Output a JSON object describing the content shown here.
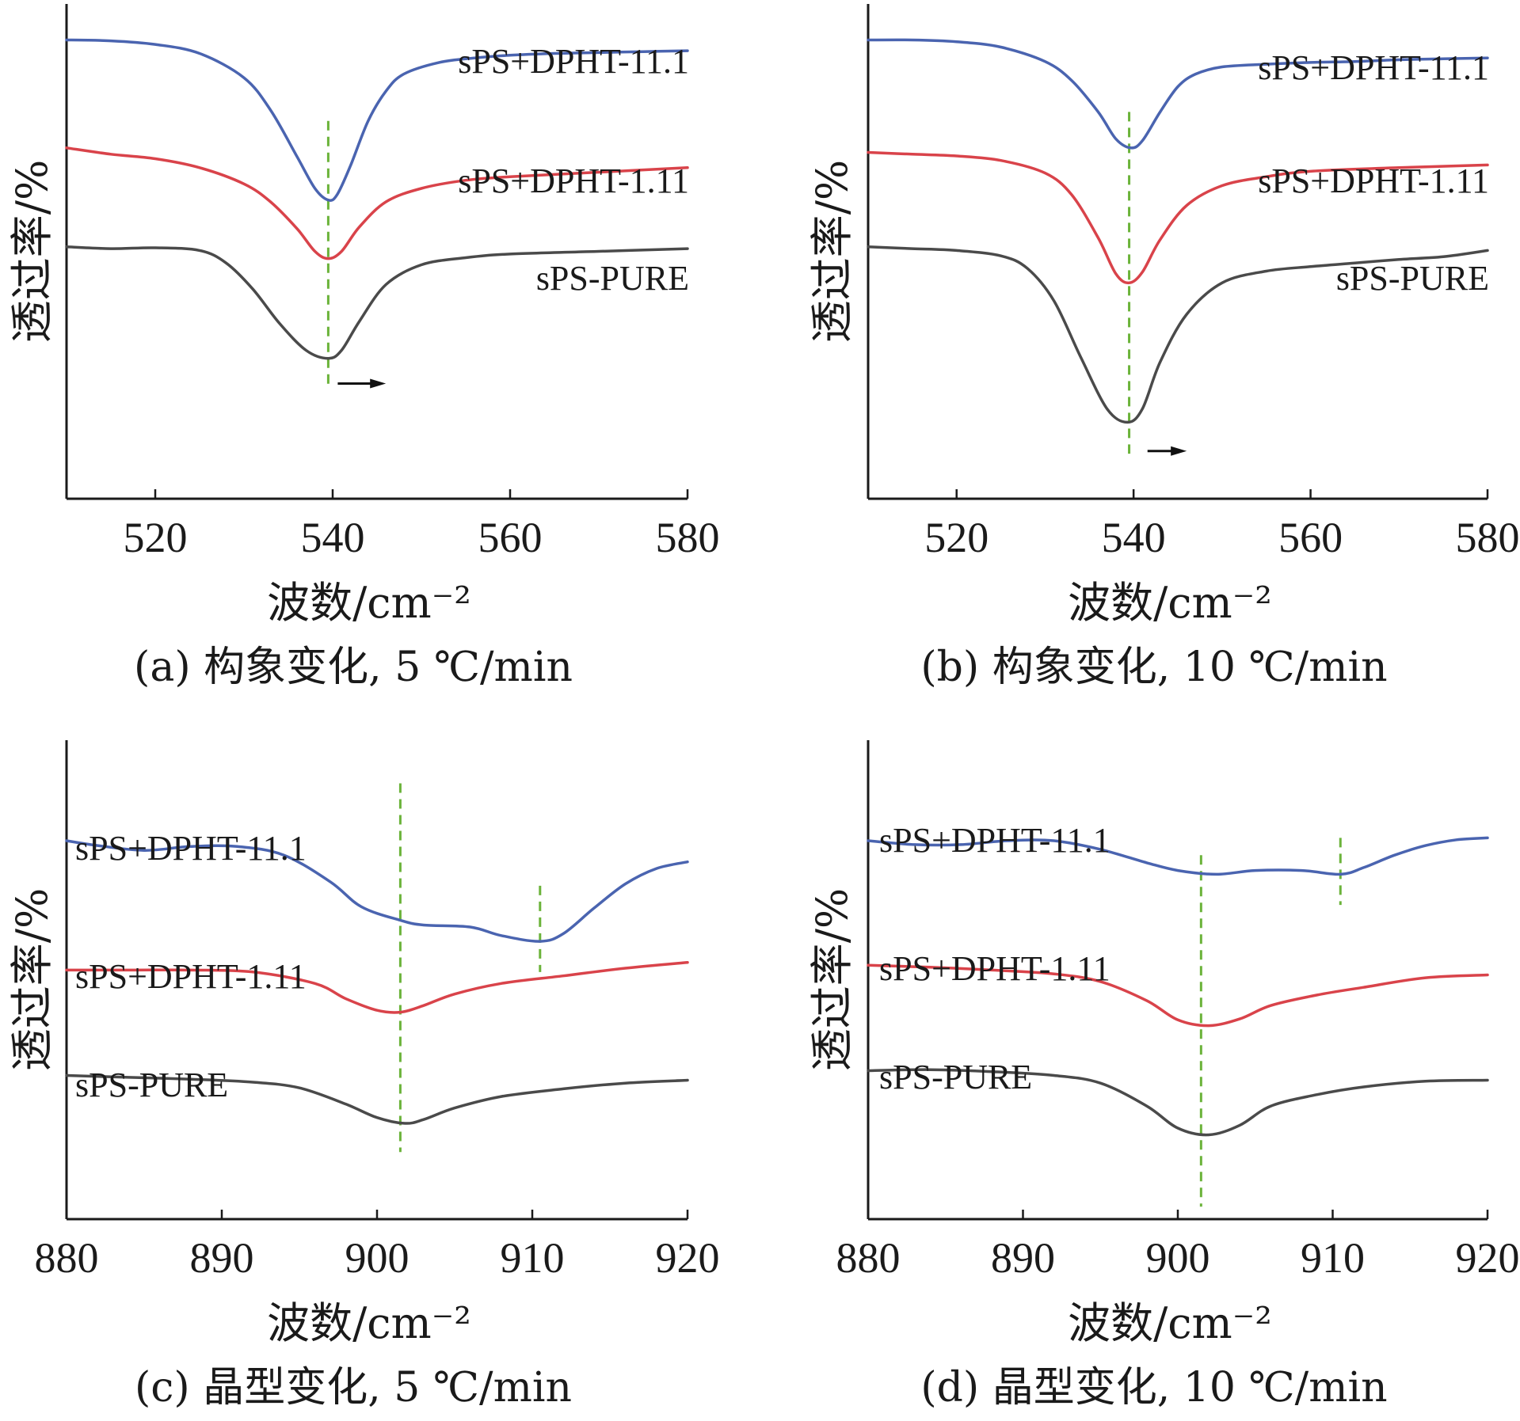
{
  "colors": {
    "series1": "#4a64b0",
    "series2": "#d9434a",
    "series3": "#4a4a4a",
    "ref": "#6bb33a"
  },
  "chart_data": [
    {
      "panel": "a",
      "type": "line",
      "caption": "(a) 构象变化, 5 ℃/min",
      "xlabel": "波数/cm⁻²",
      "ylabel": "透过率/%",
      "xlim": [
        510,
        580
      ],
      "xticks": [
        520,
        540,
        560,
        580
      ],
      "y_ticks_shown": false,
      "grid": false,
      "reference_lines": [
        539.5
      ],
      "arrow": {
        "from": 539.5,
        "to": 546
      },
      "series": [
        {
          "name": "sPS+DPHT-11.1",
          "color_key": "series1",
          "x": [
            510,
            515,
            520,
            525,
            530,
            533,
            536,
            538,
            539.5,
            540.5,
            542,
            544,
            546,
            548,
            552,
            556,
            560,
            565,
            570,
            575,
            580
          ],
          "y": [
            96.0,
            95.9,
            95.5,
            94.5,
            91.8,
            88.2,
            83.0,
            79.5,
            78.2,
            78.8,
            82.0,
            87.0,
            90.3,
            92.2,
            93.5,
            94.0,
            94.3,
            94.5,
            94.6,
            94.7,
            94.8
          ]
        },
        {
          "name": "sPS+DPHT-1.11",
          "color_key": "series2",
          "x": [
            510,
            515,
            520,
            525,
            530,
            533,
            536,
            538,
            539.5,
            541,
            543,
            546,
            550,
            555,
            560,
            570,
            580
          ],
          "y": [
            84.0,
            83.3,
            82.8,
            81.8,
            80.0,
            78.0,
            75.0,
            72.5,
            71.7,
            72.5,
            75.2,
            78.0,
            79.5,
            80.4,
            80.8,
            81.3,
            81.8
          ]
        },
        {
          "name": "sPS-PURE",
          "color_key": "series3",
          "x": [
            510,
            515,
            520,
            525,
            528,
            531,
            534,
            537,
            539.5,
            541,
            543,
            546,
            550,
            555,
            560,
            570,
            580
          ],
          "y": [
            73.0,
            72.8,
            72.9,
            72.6,
            71.2,
            68.3,
            64.5,
            61.5,
            60.6,
            61.5,
            64.7,
            68.8,
            71.0,
            71.8,
            72.2,
            72.5,
            72.8
          ]
        }
      ]
    },
    {
      "panel": "b",
      "type": "line",
      "caption": "(b) 构象变化, 10 ℃/min",
      "xlabel": "波数/cm⁻²",
      "ylabel": "透过率/%",
      "xlim": [
        510,
        580
      ],
      "xticks": [
        520,
        540,
        560,
        580
      ],
      "y_ticks_shown": false,
      "grid": false,
      "reference_lines": [
        539.5
      ],
      "arrow": {
        "from": 540.5,
        "to": 546
      },
      "series": [
        {
          "name": "sPS+DPHT-11.1",
          "color_key": "series1",
          "x": [
            510,
            515,
            520,
            525,
            530,
            533,
            536,
            538,
            539.7,
            541,
            543,
            545,
            547,
            550,
            555,
            560,
            565,
            570,
            575,
            580
          ],
          "y": [
            96.0,
            96.0,
            95.8,
            95.2,
            93.6,
            91.5,
            88.0,
            85.0,
            84.0,
            84.8,
            88.0,
            90.8,
            92.2,
            93.0,
            93.3,
            93.5,
            93.6,
            93.8,
            93.9,
            94.0
          ]
        },
        {
          "name": "sPS+DPHT-1.11",
          "color_key": "series2",
          "x": [
            510,
            515,
            520,
            525,
            530,
            533,
            536,
            538,
            539.5,
            541,
            543,
            546,
            550,
            555,
            560,
            570,
            580
          ],
          "y": [
            83.5,
            83.3,
            83.1,
            82.6,
            81.2,
            78.8,
            74.0,
            70.0,
            69.0,
            70.2,
            73.8,
            77.6,
            79.8,
            80.8,
            81.4,
            81.8,
            82.1
          ]
        },
        {
          "name": "sPS-PURE",
          "color_key": "series3",
          "x": [
            510,
            515,
            520,
            525,
            528,
            531,
            534,
            537,
            539.3,
            541,
            543,
            546,
            550,
            555,
            560,
            565,
            570,
            575,
            580
          ],
          "y": [
            73.0,
            72.8,
            72.6,
            72.0,
            70.6,
            67.0,
            60.8,
            55.0,
            53.5,
            55.0,
            60.2,
            65.5,
            69.0,
            70.3,
            70.8,
            71.2,
            71.6,
            71.9,
            72.6
          ]
        }
      ]
    },
    {
      "panel": "c",
      "type": "line",
      "caption": "(c) 晶型变化, 5 ℃/min",
      "xlabel": "波数/cm⁻²",
      "ylabel": "透过率/%",
      "xlim": [
        880,
        920
      ],
      "xticks": [
        880,
        890,
        900,
        910,
        920
      ],
      "y_ticks_shown": false,
      "grid": false,
      "reference_lines": [
        901.5,
        910.5
      ],
      "series": [
        {
          "name": "sPS+DPHT-11.1",
          "color_key": "series1",
          "x": [
            880,
            882,
            885,
            888,
            891,
            894,
            897,
            899,
            901.5,
            903,
            906,
            908,
            910.5,
            912,
            914,
            916,
            918,
            920
          ],
          "y": [
            94.5,
            94.0,
            93.5,
            93.9,
            93.9,
            93.0,
            90.2,
            87.6,
            86.2,
            85.7,
            85.5,
            84.6,
            84.0,
            84.8,
            87.5,
            90.0,
            91.6,
            92.3
          ]
        },
        {
          "name": "sPS+DPHT-1.11",
          "color_key": "series2",
          "x": [
            880,
            884,
            888,
            892,
            896,
            898,
            900,
            901.5,
            903,
            905,
            908,
            912,
            916,
            920
          ],
          "y": [
            81.0,
            81.0,
            81.0,
            80.8,
            79.6,
            78.0,
            76.8,
            76.6,
            77.3,
            78.5,
            79.6,
            80.4,
            81.2,
            81.8
          ]
        },
        {
          "name": "sPS-PURE",
          "color_key": "series3",
          "x": [
            880,
            884,
            888,
            892,
            895,
            898,
            900,
            901.8,
            903,
            905,
            908,
            912,
            916,
            920
          ],
          "y": [
            70.0,
            69.8,
            69.6,
            69.3,
            68.7,
            67.0,
            65.6,
            65.0,
            65.4,
            66.6,
            67.8,
            68.6,
            69.2,
            69.5
          ]
        }
      ]
    },
    {
      "panel": "d",
      "type": "line",
      "caption": "(d) 晶型变化, 10 ℃/min",
      "xlabel": "波数/cm⁻²",
      "ylabel": "透过率/%",
      "xlim": [
        880,
        920
      ],
      "xticks": [
        880,
        890,
        900,
        910,
        920
      ],
      "y_ticks_shown": false,
      "grid": false,
      "reference_lines": [
        901.5,
        910.5
      ],
      "series": [
        {
          "name": "sPS+DPHT-11.1",
          "color_key": "series1",
          "x": [
            880,
            883,
            886,
            889,
            892,
            895,
            898,
            900,
            902.5,
            905,
            908,
            910.5,
            912,
            914,
            916,
            918,
            920
          ],
          "y": [
            94.5,
            94.1,
            94.1,
            94.5,
            94.5,
            93.6,
            92.2,
            91.4,
            91.0,
            91.4,
            91.4,
            91.0,
            91.7,
            93.0,
            94.0,
            94.6,
            94.8
          ]
        },
        {
          "name": "sPS+DPHT-1.11",
          "color_key": "series2",
          "x": [
            880,
            884,
            888,
            892,
            895,
            898,
            900,
            902,
            904,
            906,
            909,
            912,
            916,
            920
          ],
          "y": [
            81.5,
            81.3,
            81.0,
            80.6,
            79.8,
            77.8,
            75.8,
            75.2,
            75.9,
            77.3,
            78.4,
            79.2,
            80.2,
            80.5
          ]
        },
        {
          "name": "sPS-PURE",
          "color_key": "series3",
          "x": [
            880,
            884,
            888,
            892,
            895,
            898,
            900,
            902,
            904,
            906,
            909,
            912,
            916,
            920
          ],
          "y": [
            70.5,
            70.6,
            70.4,
            70.0,
            69.2,
            66.8,
            64.5,
            63.8,
            64.8,
            66.8,
            68.0,
            68.8,
            69.4,
            69.5
          ]
        }
      ]
    }
  ]
}
